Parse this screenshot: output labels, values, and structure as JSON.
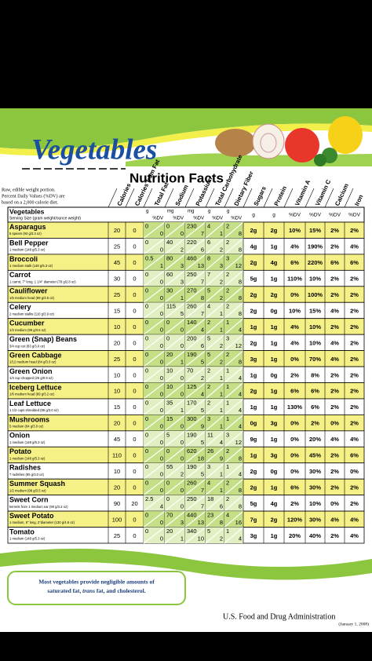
{
  "header": {
    "title": "Vegetables",
    "subtitle": "Nutrition Facts",
    "note": [
      "Raw, edible weight portion.",
      "Percent Daily Values (%DV) are",
      "based on a 2,000 calorie diet."
    ]
  },
  "table": {
    "columns": [
      "Calories",
      "Calories from Fat",
      "Total Fat",
      "Sodium",
      "Potassium",
      "Total Carbohydrate",
      "Dietary Fiber",
      "Sugars",
      "Protein",
      "Vitamin A",
      "Vitamin C",
      "Calcium",
      "Iron"
    ],
    "first_header": "Vegetables",
    "serving_header": "Serving Size (gram weight/ounce weight)",
    "units": [
      "g",
      "%DV",
      "mg",
      "%DV",
      "mg",
      "%DV",
      "g",
      "%DV",
      "g",
      "%DV",
      "g",
      "g",
      "%DV",
      "%DV",
      "%DV",
      "%DV"
    ],
    "rows": [
      {
        "name": "Asparagus",
        "serving": "5 spears (93 g/3.3 oz)",
        "cells": [
          20,
          0,
          0,
          0,
          0,
          0,
          230,
          7,
          4,
          1,
          2,
          8,
          "2g",
          "2g",
          "10%",
          "15%",
          "2%",
          "2%"
        ]
      },
      {
        "name": "Bell Pepper",
        "serving": "1 medium (148 g/5.3 oz)",
        "cells": [
          25,
          0,
          0,
          0,
          40,
          2,
          220,
          6,
          6,
          2,
          2,
          8,
          "4g",
          "1g",
          "4%",
          "190%",
          "2%",
          "4%"
        ]
      },
      {
        "name": "Broccoli",
        "serving": "1 medium stalk (148 g/5.3 oz)",
        "cells": [
          45,
          0,
          0.5,
          1,
          80,
          3,
          460,
          13,
          8,
          3,
          3,
          12,
          "2g",
          "4g",
          "6%",
          "220%",
          "6%",
          "6%"
        ]
      },
      {
        "name": "Carrot",
        "serving": "1 carrot, 7\" long, 1 1/4\" diameter (78 g/2.8 oz)",
        "cells": [
          30,
          0,
          0,
          0,
          60,
          3,
          250,
          7,
          7,
          2,
          2,
          8,
          "5g",
          "1g",
          "110%",
          "10%",
          "2%",
          "2%"
        ]
      },
      {
        "name": "Cauliflower",
        "serving": "1/6 medium head (99 g/3.5 oz)",
        "cells": [
          25,
          0,
          0,
          0,
          30,
          1,
          270,
          8,
          5,
          2,
          2,
          8,
          "2g",
          "2g",
          "0%",
          "100%",
          "2%",
          "2%"
        ]
      },
      {
        "name": "Celery",
        "serving": "2 medium stalks (110 g/3.9 oz)",
        "cells": [
          15,
          0,
          0,
          0,
          115,
          5,
          260,
          7,
          4,
          1,
          2,
          8,
          "2g",
          "0g",
          "10%",
          "15%",
          "4%",
          "2%"
        ]
      },
      {
        "name": "Cucumber",
        "serving": "1/3 medium (99 g/3.5 oz)",
        "cells": [
          10,
          0,
          0,
          0,
          0,
          0,
          140,
          4,
          2,
          1,
          1,
          4,
          "1g",
          "1g",
          "4%",
          "10%",
          "2%",
          "2%"
        ]
      },
      {
        "name": "Green (Snap) Beans",
        "serving": "3/4 cup cut (83 g/3.0 oz)",
        "cells": [
          20,
          0,
          0,
          0,
          0,
          0,
          200,
          6,
          5,
          2,
          3,
          12,
          "2g",
          "1g",
          "4%",
          "10%",
          "4%",
          "2%"
        ]
      },
      {
        "name": "Green Cabbage",
        "serving": "1/12 medium head (84 g/3.0 oz)",
        "cells": [
          25,
          0,
          0,
          0,
          20,
          1,
          190,
          5,
          5,
          2,
          2,
          8,
          "3g",
          "1g",
          "0%",
          "70%",
          "4%",
          "2%"
        ]
      },
      {
        "name": "Green Onion",
        "serving": "1/4 cup chopped (25 g/0.9 oz)",
        "cells": [
          10,
          0,
          0,
          0,
          10,
          0,
          70,
          2,
          2,
          1,
          1,
          4,
          "1g",
          "0g",
          "2%",
          "8%",
          "2%",
          "2%"
        ]
      },
      {
        "name": "Iceberg Lettuce",
        "serving": "1/6 medium head (89 g/3.2 oz)",
        "cells": [
          10,
          0,
          0,
          0,
          10,
          0,
          125,
          4,
          2,
          1,
          1,
          4,
          "2g",
          "1g",
          "6%",
          "6%",
          "2%",
          "2%"
        ]
      },
      {
        "name": "Leaf Lettuce",
        "serving": "1 1/2 cups shredded (85 g/3.0 oz)",
        "cells": [
          15,
          0,
          0,
          0,
          35,
          1,
          170,
          5,
          2,
          1,
          1,
          4,
          "1g",
          "1g",
          "130%",
          "6%",
          "2%",
          "2%"
        ]
      },
      {
        "name": "Mushrooms",
        "serving": "5 medium (84 g/3.0 oz)",
        "cells": [
          20,
          0,
          0,
          0,
          15,
          0,
          300,
          9,
          3,
          1,
          1,
          4,
          "0g",
          "3g",
          "0%",
          "2%",
          "0%",
          "2%"
        ]
      },
      {
        "name": "Onion",
        "serving": "1 medium (148 g/5.3 oz)",
        "cells": [
          45,
          0,
          0,
          0,
          5,
          0,
          190,
          5,
          11,
          4,
          3,
          12,
          "9g",
          "1g",
          "0%",
          "20%",
          "4%",
          "4%"
        ]
      },
      {
        "name": "Potato",
        "serving": "1 medium (148 g/5.3 oz)",
        "cells": [
          110,
          0,
          0,
          0,
          0,
          0,
          620,
          18,
          26,
          9,
          2,
          8,
          "1g",
          "3g",
          "0%",
          "45%",
          "2%",
          "6%"
        ]
      },
      {
        "name": "Radishes",
        "serving": "7 radishes (85 g/3.0 oz)",
        "cells": [
          10,
          0,
          0,
          0,
          55,
          2,
          190,
          5,
          3,
          1,
          1,
          4,
          "2g",
          "0g",
          "0%",
          "30%",
          "2%",
          "0%"
        ]
      },
      {
        "name": "Summer Squash",
        "serving": "1/2 medium (98 g/3.5 oz)",
        "cells": [
          20,
          0,
          0,
          0,
          0,
          0,
          260,
          7,
          4,
          1,
          2,
          8,
          "2g",
          "1g",
          "6%",
          "30%",
          "2%",
          "2%"
        ]
      },
      {
        "name": "Sweet Corn",
        "serving": "kernels from 1 medium ear (90 g/3.2 oz)",
        "cells": [
          90,
          20,
          2.5,
          4,
          0,
          0,
          250,
          7,
          18,
          6,
          2,
          8,
          "5g",
          "4g",
          "2%",
          "10%",
          "0%",
          "2%"
        ]
      },
      {
        "name": "Sweet Potato",
        "serving": "1 medium, 5\" long, 2\"diameter (130 g/4.6 oz)",
        "cells": [
          100,
          0,
          0,
          0,
          70,
          3,
          440,
          13,
          23,
          8,
          4,
          16,
          "7g",
          "2g",
          "120%",
          "30%",
          "4%",
          "4%"
        ]
      },
      {
        "name": "Tomato",
        "serving": "1 medium (148 g/5.3 oz)",
        "cells": [
          25,
          0,
          0,
          0,
          20,
          1,
          340,
          10,
          5,
          2,
          1,
          4,
          "3g",
          "1g",
          "20%",
          "40%",
          "2%",
          "4%"
        ]
      }
    ]
  },
  "footer": {
    "note_line1": "Most vegetables provide negligible amounts of",
    "note_line2_a": "saturated fat, ",
    "note_line2_trans": "trans",
    "note_line2_b": " fat, and cholesterol.",
    "agency": "U.S. Food and Drug Administration",
    "date": "(January 1, 2008)"
  }
}
